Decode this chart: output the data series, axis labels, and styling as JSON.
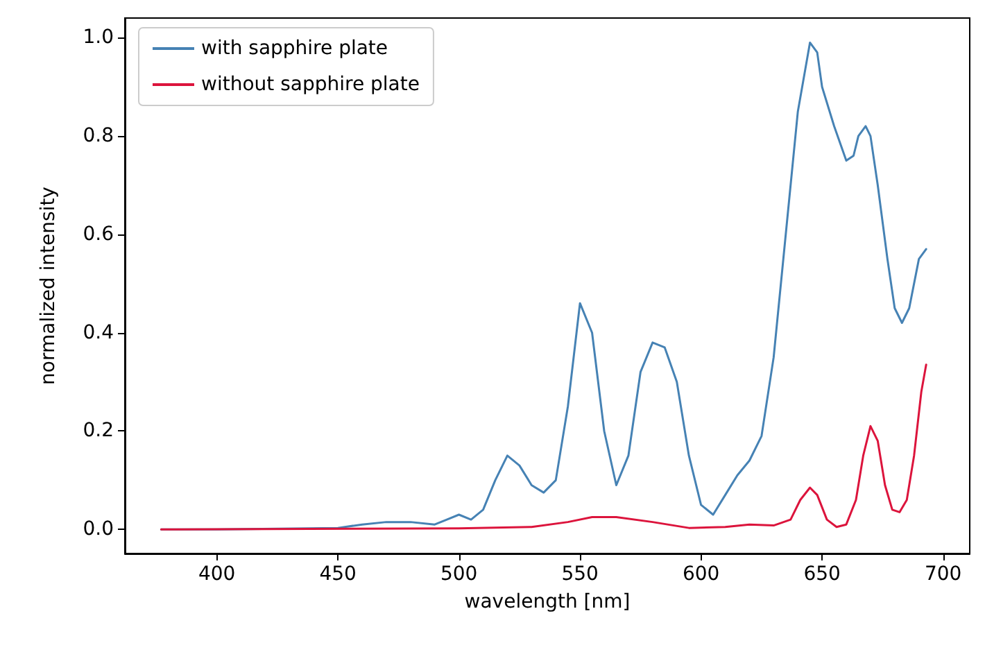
{
  "chart_data": {
    "type": "line",
    "xlabel": "wavelength [nm]",
    "ylabel": "normalized intensity",
    "xlim": [
      362,
      711
    ],
    "ylim": [
      -0.049,
      1.04
    ],
    "xticks": [
      400,
      450,
      500,
      550,
      600,
      650,
      700
    ],
    "yticks": [
      {
        "value": 0,
        "label": "0.0"
      },
      {
        "value": 0.2,
        "label": "0.2"
      },
      {
        "value": 0.4,
        "label": "0.4"
      },
      {
        "value": 0.6,
        "label": "0.6"
      },
      {
        "value": 0.8,
        "label": "0.8"
      },
      {
        "value": 1,
        "label": "1.0"
      }
    ],
    "grid": false,
    "legend": "top left",
    "marker": "none",
    "line_style": "solid",
    "series": [
      {
        "name": "with sapphire plate",
        "color": "#4682b4",
        "x": [
          377,
          400,
          450,
          460,
          470,
          480,
          490,
          495,
          500,
          505,
          510,
          515,
          520,
          525,
          530,
          535,
          540,
          545,
          550,
          555,
          560,
          565,
          570,
          575,
          580,
          585,
          590,
          595,
          600,
          605,
          610,
          615,
          620,
          625,
          630,
          635,
          640,
          645,
          648,
          650,
          655,
          660,
          663,
          665,
          668,
          670,
          673,
          677,
          680,
          683,
          686,
          690,
          693
        ],
        "values": [
          0,
          0,
          0.003,
          0.01,
          0.015,
          0.015,
          0.01,
          0.02,
          0.03,
          0.02,
          0.04,
          0.1,
          0.15,
          0.13,
          0.09,
          0.075,
          0.1,
          0.25,
          0.46,
          0.4,
          0.2,
          0.09,
          0.15,
          0.32,
          0.38,
          0.37,
          0.3,
          0.15,
          0.05,
          0.03,
          0.07,
          0.11,
          0.14,
          0.19,
          0.35,
          0.6,
          0.85,
          0.99,
          0.97,
          0.9,
          0.82,
          0.75,
          0.76,
          0.8,
          0.82,
          0.8,
          0.7,
          0.55,
          0.45,
          0.42,
          0.45,
          0.55,
          0.57
        ]
      },
      {
        "name": "without sapphire plate",
        "color": "#dc143c",
        "x": [
          377,
          500,
          530,
          545,
          555,
          565,
          580,
          595,
          610,
          620,
          630,
          637,
          641,
          645,
          648,
          652,
          656,
          660,
          664,
          667,
          670,
          673,
          676,
          679,
          682,
          685,
          688,
          691,
          693
        ],
        "values": [
          0,
          0.002,
          0.005,
          0.015,
          0.025,
          0.025,
          0.015,
          0.003,
          0.005,
          0.01,
          0.008,
          0.02,
          0.06,
          0.085,
          0.07,
          0.02,
          0.005,
          0.01,
          0.06,
          0.15,
          0.21,
          0.18,
          0.09,
          0.04,
          0.035,
          0.06,
          0.15,
          0.28,
          0.335
        ]
      }
    ]
  }
}
